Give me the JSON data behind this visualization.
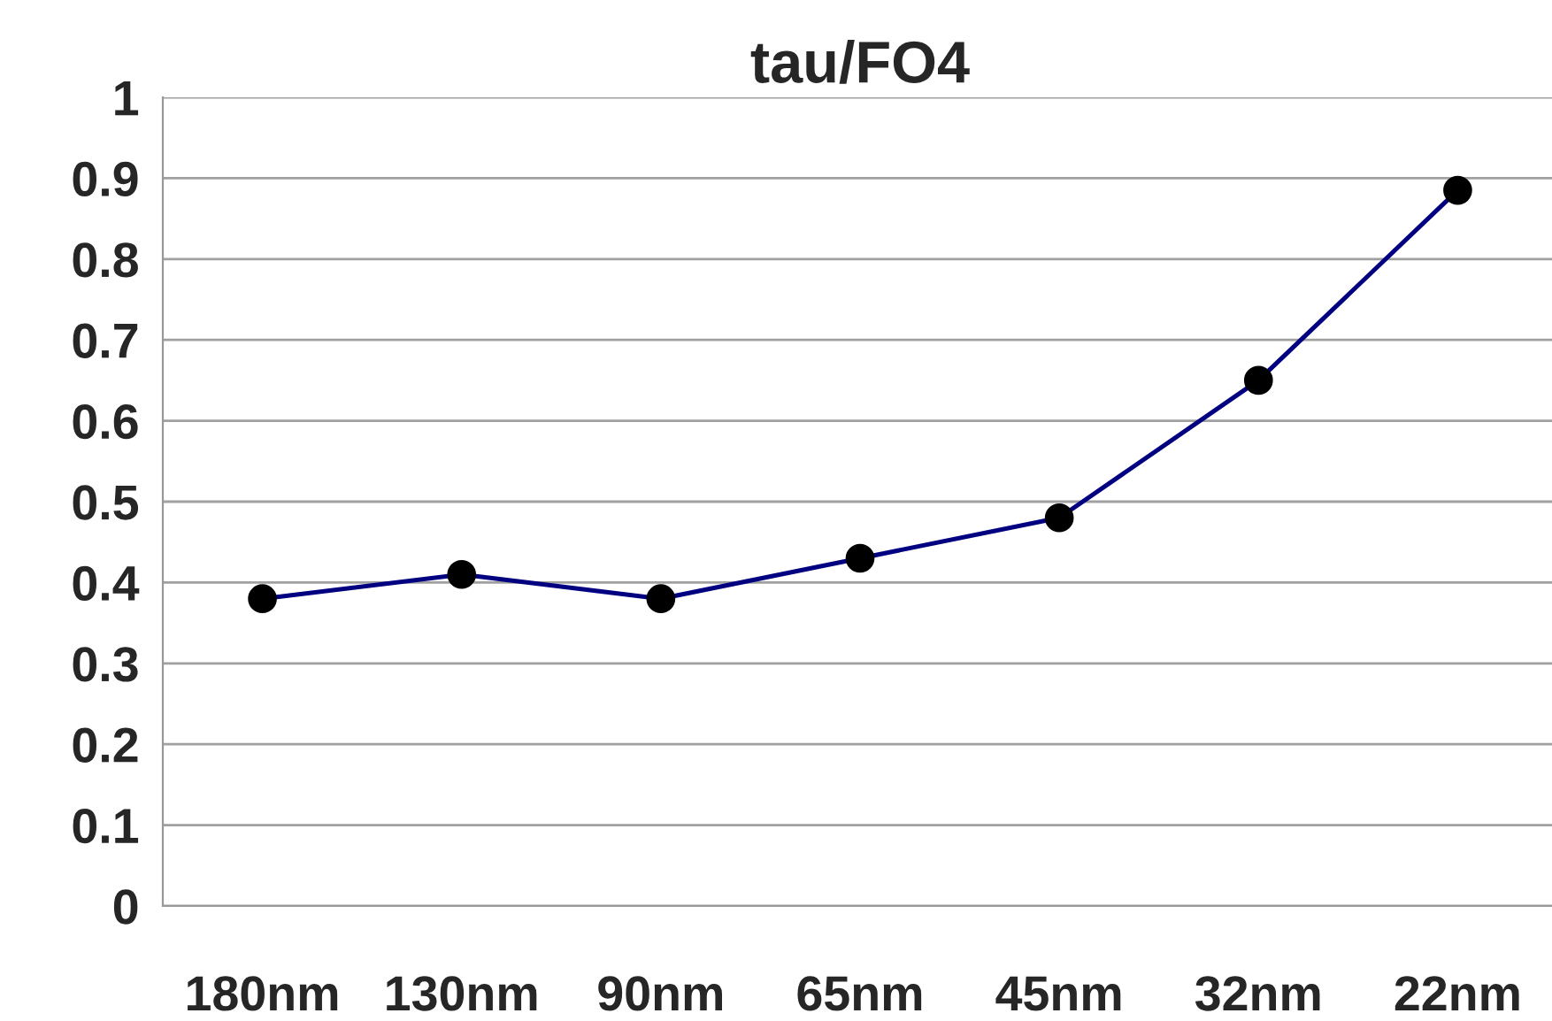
{
  "chart_data": {
    "type": "line",
    "title": "tau/FO4",
    "categories": [
      "180nm",
      "130nm",
      "90nm",
      "65nm",
      "45nm",
      "32nm",
      "22nm"
    ],
    "series": [
      {
        "color": "#000080",
        "values": [
          0.38,
          0.41,
          0.38,
          0.43,
          0.48,
          0.65,
          0.885
        ]
      }
    ],
    "ylim": [
      0,
      1
    ],
    "yticks": [
      0,
      0.1,
      0.2,
      0.3,
      0.4,
      0.5,
      0.6,
      0.7,
      0.8,
      0.9,
      1
    ],
    "grid": "y",
    "marker": "circle",
    "line_style": "solid",
    "legend": false
  }
}
